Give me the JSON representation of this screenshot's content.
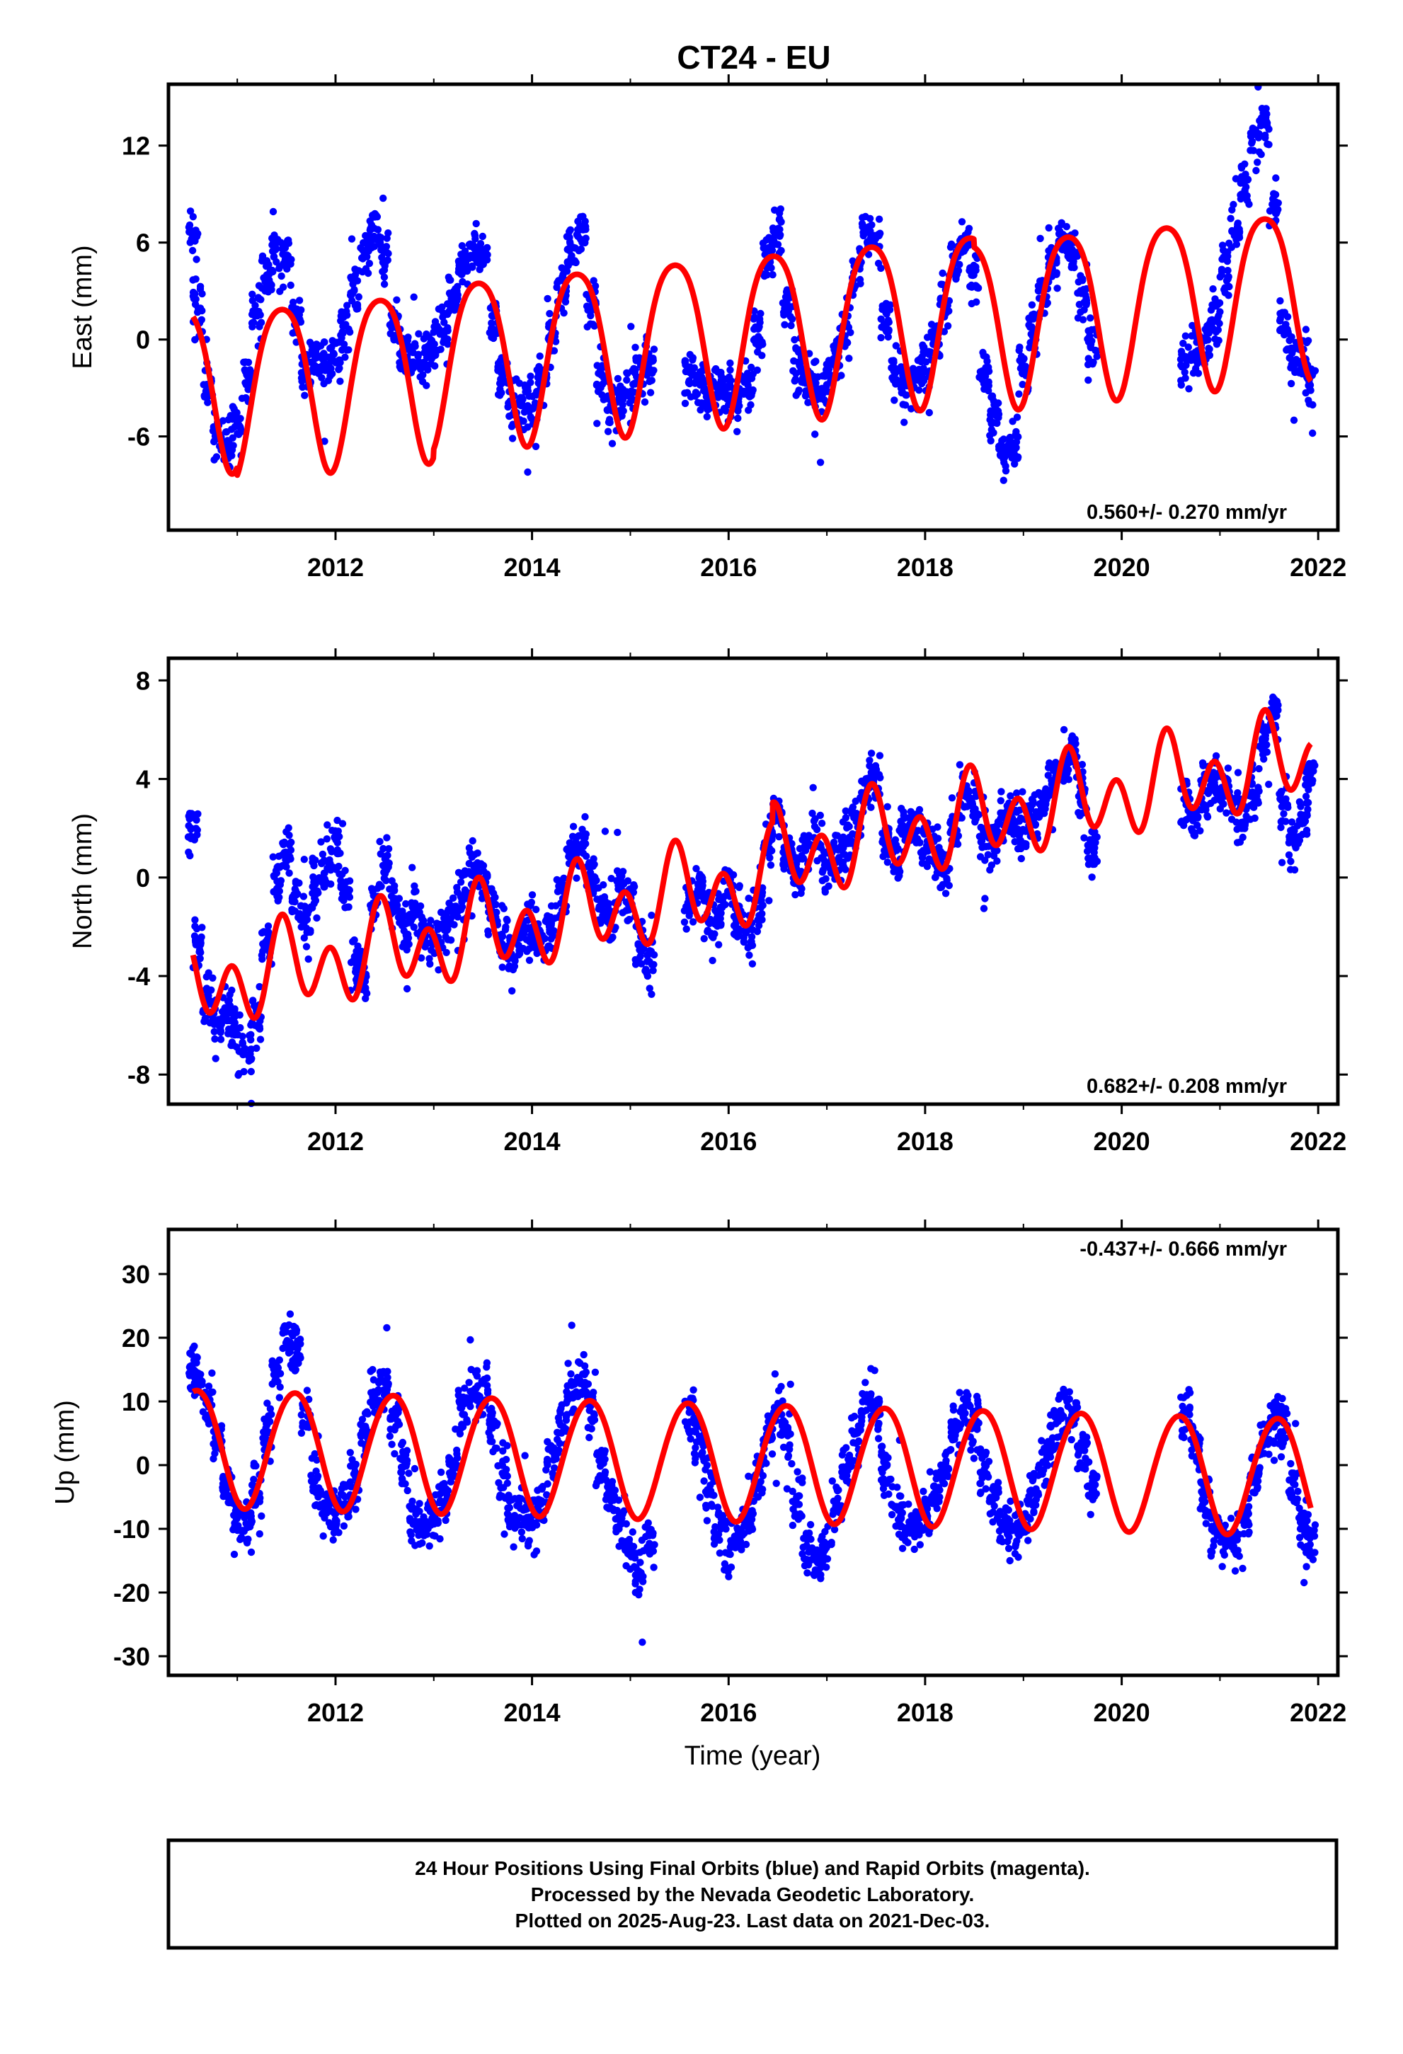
{
  "figure": {
    "title": "CT24 - EU",
    "xlabel": "Time (year)",
    "footer": [
      "24 Hour Positions Using Final Orbits (blue) and Rapid Orbits (magenta).",
      "Processed by the Nevada Geodetic Laboratory.",
      "Plotted on 2025-Aug-23. Last data on 2021-Dec-03."
    ]
  },
  "colors": {
    "data": "#0000ff",
    "model": "#ff0000",
    "frame": "#000000"
  },
  "chart_data": [
    {
      "type": "scatter",
      "component": "East",
      "ylabel": "East (mm)",
      "rate_text": "0.560+/- 0.270 mm/yr",
      "xlim": [
        2010.3,
        2022.2
      ],
      "ylim": [
        -11.8,
        15.8
      ],
      "x_ticks": [
        2012,
        2014,
        2016,
        2018,
        2020,
        2022
      ],
      "y_ticks": [
        -6,
        0,
        6,
        12
      ],
      "x_minor_ticks": [
        2011,
        2013,
        2015,
        2017,
        2019,
        2021
      ],
      "gaps": [
        [
          2019.72,
          2020.63
        ]
      ],
      "series": [
        {
          "role": "data",
          "x": [
            2010.55,
            2010.6,
            2010.7,
            2010.8,
            2010.9,
            2011.0,
            2011.1,
            2011.2,
            2011.3,
            2011.4,
            2011.5,
            2011.6,
            2011.7,
            2011.8,
            2011.9,
            2012.0,
            2012.1,
            2012.2,
            2012.3,
            2012.4,
            2012.5,
            2012.6,
            2012.7,
            2012.8,
            2012.9,
            2013.0,
            2013.1,
            2013.2,
            2013.3,
            2013.4,
            2013.5,
            2013.6,
            2013.7,
            2013.8,
            2013.9,
            2014.0,
            2014.1,
            2014.2,
            2014.3,
            2014.4,
            2014.5,
            2014.6,
            2014.7,
            2014.8,
            2014.9,
            2015.0,
            2015.1,
            2015.2,
            2015.6,
            2015.7,
            2015.8,
            2015.9,
            2016.0,
            2016.1,
            2016.2,
            2016.3,
            2016.4,
            2016.5,
            2016.6,
            2016.7,
            2016.8,
            2016.9,
            2017.0,
            2017.1,
            2017.2,
            2017.3,
            2017.4,
            2017.5,
            2017.6,
            2017.7,
            2017.8,
            2017.9,
            2018.0,
            2018.1,
            2018.2,
            2018.3,
            2018.4,
            2018.5,
            2018.6,
            2018.7,
            2018.8,
            2018.9,
            2019.0,
            2019.1,
            2019.2,
            2019.3,
            2019.4,
            2019.5,
            2019.6,
            2019.7,
            2020.65,
            2020.75,
            2020.85,
            2020.95,
            2021.05,
            2021.15,
            2021.25,
            2021.35,
            2021.45,
            2021.55,
            2021.65,
            2021.75,
            2021.85,
            2021.92
          ],
          "y": [
            6.5,
            2.0,
            -3.0,
            -6.0,
            -6.5,
            -5.0,
            -2.0,
            1.5,
            4.0,
            5.5,
            5.0,
            1.5,
            -2.0,
            -1.0,
            -1.5,
            -1.0,
            0.5,
            3.0,
            5.5,
            6.5,
            5.5,
            1.0,
            -1.0,
            -1.0,
            -1.0,
            -0.5,
            0.5,
            2.5,
            4.5,
            5.5,
            5.0,
            1.0,
            -2.5,
            -4.0,
            -4.5,
            -4.0,
            -2.5,
            0.0,
            3.0,
            5.5,
            6.5,
            2.0,
            -2.5,
            -4.5,
            -4.0,
            -3.0,
            -2.0,
            -1.5,
            -2.0,
            -3.0,
            -3.5,
            -3.0,
            -3.5,
            -4.0,
            -3.0,
            0.5,
            5.0,
            6.5,
            2.0,
            -1.5,
            -2.5,
            -3.0,
            -2.5,
            -1.0,
            1.0,
            4.0,
            6.5,
            6.0,
            1.5,
            -2.0,
            -3.0,
            -2.5,
            -1.5,
            0.0,
            2.0,
            5.0,
            6.0,
            4.0,
            -2.0,
            -5.0,
            -7.0,
            -6.5,
            -2.0,
            0.5,
            2.5,
            4.5,
            6.0,
            5.5,
            2.5,
            -0.5,
            -1.5,
            -1.0,
            -0.5,
            1.5,
            4.0,
            6.5,
            9.5,
            12.5,
            13.5,
            8.0,
            1.0,
            -1.0,
            -1.5,
            -2.5
          ]
        },
        {
          "role": "model",
          "seasonal_fit": {
            "t0": 2016.0,
            "offset": 0.5,
            "trend": 0.56,
            "annual_amplitude": 5.2,
            "annual_peak": 2016.45,
            "semiannual_amplitude": 0.8,
            "semiannual_peak": 2016.2,
            "offsets": [
              [
                2011.0,
                -0.5
              ],
              [
                2013.0,
                0.5
              ],
              [
                2018.5,
                -0.5
              ]
            ]
          }
        }
      ]
    },
    {
      "type": "scatter",
      "component": "North",
      "ylabel": "North (mm)",
      "rate_text": "0.682+/- 0.208 mm/yr",
      "xlim": [
        2010.3,
        2022.2
      ],
      "ylim": [
        -9.2,
        8.9
      ],
      "x_ticks": [
        2012,
        2014,
        2016,
        2018,
        2020,
        2022
      ],
      "y_ticks": [
        -8,
        -4,
        0,
        4,
        8
      ],
      "x_minor_ticks": [
        2011,
        2013,
        2015,
        2017,
        2019,
        2021
      ],
      "gaps": [
        [
          2019.72,
          2020.63
        ]
      ],
      "series": [
        {
          "role": "data",
          "x": [
            2010.55,
            2010.6,
            2010.7,
            2010.8,
            2010.9,
            2011.0,
            2011.1,
            2011.2,
            2011.3,
            2011.4,
            2011.5,
            2011.6,
            2011.7,
            2011.8,
            2011.9,
            2012.0,
            2012.1,
            2012.2,
            2012.3,
            2012.4,
            2012.5,
            2012.6,
            2012.7,
            2012.8,
            2012.9,
            2013.0,
            2013.1,
            2013.2,
            2013.3,
            2013.4,
            2013.5,
            2013.6,
            2013.7,
            2013.8,
            2013.9,
            2014.0,
            2014.1,
            2014.2,
            2014.3,
            2014.4,
            2014.5,
            2014.6,
            2014.7,
            2014.8,
            2014.9,
            2015.0,
            2015.1,
            2015.2,
            2015.6,
            2015.7,
            2015.8,
            2015.9,
            2016.0,
            2016.1,
            2016.2,
            2016.3,
            2016.4,
            2016.5,
            2016.6,
            2016.7,
            2016.8,
            2016.9,
            2017.0,
            2017.1,
            2017.2,
            2017.3,
            2017.4,
            2017.5,
            2017.6,
            2017.7,
            2017.8,
            2017.9,
            2018.0,
            2018.1,
            2018.2,
            2018.3,
            2018.4,
            2018.5,
            2018.6,
            2018.7,
            2018.8,
            2018.9,
            2019.0,
            2019.1,
            2019.2,
            2019.3,
            2019.4,
            2019.5,
            2019.6,
            2019.7,
            2020.65,
            2020.75,
            2020.85,
            2020.95,
            2021.05,
            2021.15,
            2021.25,
            2021.35,
            2021.45,
            2021.55,
            2021.65,
            2021.75,
            2021.85,
            2021.92
          ],
          "y": [
            2.0,
            -3.0,
            -5.0,
            -6.0,
            -5.5,
            -6.0,
            -7.0,
            -5.5,
            -2.5,
            0.0,
            1.0,
            -1.0,
            -2.0,
            -0.5,
            0.5,
            1.0,
            -0.5,
            -3.5,
            -4.0,
            -1.0,
            0.5,
            -1.0,
            -2.0,
            -1.5,
            -2.0,
            -2.5,
            -2.0,
            -1.5,
            -0.5,
            0.5,
            0.0,
            -1.5,
            -2.5,
            -3.0,
            -2.5,
            -2.0,
            -2.5,
            -2.0,
            -0.5,
            1.0,
            1.5,
            0.0,
            -1.0,
            -1.5,
            -0.5,
            -1.0,
            -2.5,
            -3.5,
            -1.0,
            -0.5,
            -1.5,
            -1.5,
            -0.5,
            -1.5,
            -2.5,
            -1.0,
            1.5,
            2.5,
            1.0,
            0.0,
            1.0,
            1.5,
            0.5,
            1.0,
            1.5,
            2.0,
            3.5,
            4.0,
            1.5,
            1.0,
            2.0,
            2.0,
            1.5,
            1.0,
            0.5,
            2.0,
            3.5,
            3.0,
            1.5,
            1.5,
            2.5,
            2.5,
            2.0,
            2.5,
            3.0,
            4.0,
            4.5,
            5.0,
            3.5,
            1.0,
            3.0,
            2.5,
            3.5,
            4.0,
            3.5,
            3.0,
            2.5,
            3.5,
            5.5,
            6.5,
            3.0,
            1.5,
            2.5,
            4.0
          ]
        },
        {
          "role": "model",
          "seasonal_fit": {
            "t0": 2016.0,
            "offset": -0.35,
            "trend": 0.75,
            "annual_amplitude": 0.9,
            "annual_peak": 2016.5,
            "semiannual_amplitude": 1.4,
            "semiannual_peak": 2016.45,
            "offsets": [
              [
                2016.45,
                0.8
              ]
            ]
          }
        }
      ]
    },
    {
      "type": "scatter",
      "component": "Up",
      "ylabel": "Up (mm)",
      "rate_text": "-0.437+/- 0.666 mm/yr",
      "xlim": [
        2010.3,
        2022.2
      ],
      "ylim": [
        -33,
        37
      ],
      "x_ticks": [
        2012,
        2014,
        2016,
        2018,
        2020,
        2022
      ],
      "y_ticks": [
        -30,
        -20,
        -10,
        0,
        10,
        20,
        30
      ],
      "x_minor_ticks": [
        2011,
        2013,
        2015,
        2017,
        2019,
        2021
      ],
      "gaps": [
        [
          2019.72,
          2020.63
        ]
      ],
      "series": [
        {
          "role": "data",
          "x": [
            2010.55,
            2010.6,
            2010.7,
            2010.8,
            2010.9,
            2011.0,
            2011.1,
            2011.2,
            2011.3,
            2011.4,
            2011.5,
            2011.6,
            2011.7,
            2011.8,
            2011.9,
            2012.0,
            2012.1,
            2012.2,
            2012.3,
            2012.4,
            2012.5,
            2012.6,
            2012.7,
            2012.8,
            2012.9,
            2013.0,
            2013.1,
            2013.2,
            2013.3,
            2013.4,
            2013.5,
            2013.6,
            2013.7,
            2013.8,
            2013.9,
            2014.0,
            2014.1,
            2014.2,
            2014.3,
            2014.4,
            2014.5,
            2014.6,
            2014.7,
            2014.8,
            2014.9,
            2015.0,
            2015.1,
            2015.2,
            2015.6,
            2015.7,
            2015.8,
            2015.9,
            2016.0,
            2016.1,
            2016.2,
            2016.3,
            2016.4,
            2016.5,
            2016.6,
            2016.7,
            2016.8,
            2016.9,
            2017.0,
            2017.1,
            2017.2,
            2017.3,
            2017.4,
            2017.5,
            2017.6,
            2017.7,
            2017.8,
            2017.9,
            2018.0,
            2018.1,
            2018.2,
            2018.3,
            2018.4,
            2018.5,
            2018.6,
            2018.7,
            2018.8,
            2018.9,
            2019.0,
            2019.1,
            2019.2,
            2019.3,
            2019.4,
            2019.5,
            2019.6,
            2019.7,
            2020.65,
            2020.75,
            2020.85,
            2020.95,
            2021.05,
            2021.15,
            2021.25,
            2021.35,
            2021.45,
            2021.55,
            2021.65,
            2021.75,
            2021.85,
            2021.92
          ],
          "y": [
            15.0,
            14.0,
            10.0,
            3.0,
            -3.0,
            -8.0,
            -9.0,
            -4.0,
            5.0,
            14.0,
            20.0,
            18.0,
            8.0,
            -3.0,
            -7.0,
            -8.0,
            -6.0,
            -2.0,
            5.0,
            11.0,
            12.0,
            8.0,
            0.0,
            -8.0,
            -9.0,
            -8.0,
            -5.0,
            1.0,
            8.0,
            12.0,
            11.0,
            6.0,
            -2.0,
            -8.0,
            -8.0,
            -9.0,
            -6.0,
            0.0,
            6.0,
            11.0,
            13.0,
            9.0,
            0.0,
            -6.0,
            -9.0,
            -14.0,
            -16.0,
            -12.0,
            8.0,
            3.0,
            -4.0,
            -10.0,
            -13.0,
            -11.0,
            -8.0,
            -2.0,
            5.0,
            9.0,
            4.0,
            -6.0,
            -13.0,
            -15.0,
            -12.0,
            -6.0,
            0.0,
            5.0,
            10.0,
            8.0,
            0.0,
            -7.0,
            -9.0,
            -10.0,
            -8.0,
            -5.0,
            0.0,
            6.0,
            9.0,
            6.0,
            0.0,
            -6.0,
            -9.0,
            -11.0,
            -9.0,
            -5.0,
            0.0,
            5.0,
            9.0,
            8.0,
            2.0,
            -3.0,
            8.0,
            3.0,
            -5.0,
            -11.0,
            -13.0,
            -12.0,
            -8.0,
            -2.0,
            4.0,
            8.0,
            6.0,
            -3.0,
            -9.0,
            -12.0
          ]
        },
        {
          "role": "model",
          "seasonal_fit": {
            "t0": 2016.0,
            "offset": 0.8,
            "trend": -0.4,
            "annual_amplitude": 9.2,
            "annual_peak": 2016.58,
            "semiannual_amplitude": 0.5,
            "semiannual_peak": 2016.3,
            "offsets": []
          }
        }
      ]
    }
  ]
}
